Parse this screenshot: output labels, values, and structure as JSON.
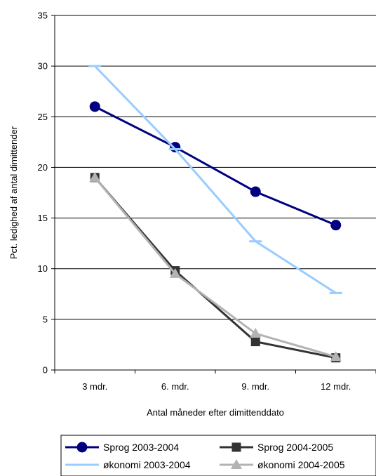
{
  "chart_data": {
    "type": "line",
    "categories": [
      "3 mdr.",
      "6. mdr.",
      "9. mdr.",
      "12 mdr."
    ],
    "xlabel": "Antal måneder efter dimittenddato",
    "ylabel": "Pct. ledighed af antal dimittender",
    "ylim": [
      0,
      35
    ],
    "yticks": [
      0,
      5,
      10,
      15,
      20,
      25,
      30,
      35
    ],
    "grid": true,
    "legend_position": "bottom",
    "series": [
      {
        "name": "Sprog 2003-2004",
        "values": [
          26,
          22,
          17.6,
          14.3
        ],
        "color": "#000080",
        "marker": "circle"
      },
      {
        "name": "Sprog 2004-2005",
        "values": [
          19,
          9.8,
          2.8,
          1.2
        ],
        "color": "#333333",
        "marker": "square"
      },
      {
        "name": "økonomi 2003-2004",
        "values": [
          30,
          21.8,
          12.7,
          7.6
        ],
        "color": "#99ccff",
        "marker": "dash"
      },
      {
        "name": "økonomi 2004-2005",
        "values": [
          19,
          9.5,
          3.6,
          1.3
        ],
        "color": "#b3b3b3",
        "marker": "triangle"
      }
    ]
  }
}
